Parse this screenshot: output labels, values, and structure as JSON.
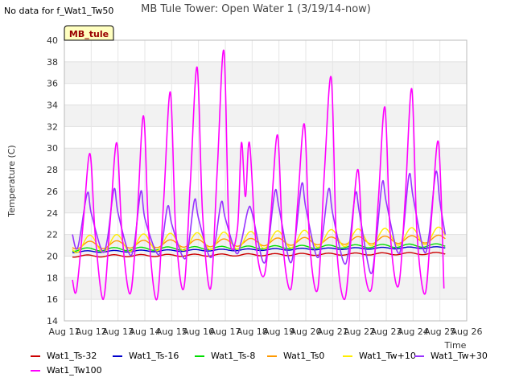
{
  "header": {
    "no_data_note": "No data for f_Wat1_Tw50"
  },
  "chart_data": {
    "type": "line",
    "title": "MB Tule Tower: Open Water 1 (3/19/14-now)",
    "badge": "MB_tule",
    "xlabel": "Time",
    "ylabel": "Temperature (C)",
    "ylim": [
      14,
      40
    ],
    "yticks": [
      14,
      16,
      18,
      20,
      22,
      24,
      26,
      28,
      30,
      32,
      34,
      36,
      38,
      40
    ],
    "xlim": [
      11,
      26
    ],
    "xticks": [
      11,
      12,
      13,
      14,
      15,
      16,
      17,
      18,
      19,
      20,
      21,
      22,
      23,
      24,
      25,
      26
    ],
    "xtick_labels": [
      "Aug 11",
      "Aug 12",
      "Aug 13",
      "Aug 14",
      "Aug 15",
      "Aug 16",
      "Aug 17",
      "Aug 18",
      "Aug 19",
      "Aug 20",
      "Aug 21",
      "Aug 22",
      "Aug 23",
      "Aug 24",
      "Aug 25",
      "Aug 26"
    ],
    "grid": true,
    "series": [
      {
        "name": "Wat1_Ts-32",
        "color": "#cc0000",
        "mean": 20.0,
        "amp": 0.1,
        "drift": 0.25,
        "phase": 0.6,
        "x": [
          11.3,
          25.2
        ]
      },
      {
        "name": "Wat1_Ts-16",
        "color": "#0000cc",
        "mean": 20.4,
        "amp": 0.08,
        "drift": 0.4,
        "phase": 0.6,
        "x": [
          11.3,
          25.2
        ]
      },
      {
        "name": "Wat1_Ts-8",
        "color": "#00dd00",
        "mean": 20.6,
        "amp": 0.15,
        "drift": 0.4,
        "phase": 0.6,
        "x": [
          11.3,
          25.2
        ]
      },
      {
        "name": "Wat1_Ts0",
        "color": "#ff9900",
        "mean": 21.0,
        "amp": 0.35,
        "drift": 0.6,
        "phase": 0.7,
        "x": [
          11.3,
          25.2
        ]
      },
      {
        "name": "Wat1_Tw+10",
        "color": "#ffee00",
        "mean": 21.1,
        "amp": 0.8,
        "drift": 0.8,
        "phase": 0.7,
        "x": [
          11.3,
          25.2
        ]
      },
      {
        "name": "Wat1_Tw+30",
        "color": "#9933ff",
        "x": [
          11.3,
          11.5,
          11.85,
          12.0,
          12.4,
          12.6,
          12.85,
          13.0,
          13.4,
          13.6,
          13.85,
          14.0,
          14.4,
          14.6,
          14.85,
          15.0,
          15.4,
          15.6,
          15.85,
          16.0,
          16.4,
          16.6,
          16.85,
          17.0,
          17.4,
          17.6,
          17.85,
          18.0,
          18.4,
          18.6,
          18.85,
          19.0,
          19.4,
          19.6,
          19.85,
          20.0,
          20.4,
          20.6,
          20.85,
          21.0,
          21.4,
          21.6,
          21.85,
          22.0,
          22.4,
          22.6,
          22.85,
          23.0,
          23.4,
          23.6,
          23.85,
          24.0,
          24.4,
          24.6,
          24.85,
          25.0,
          25.2
        ],
        "y": [
          22,
          20.8,
          25.8,
          24,
          20.5,
          21.5,
          26.2,
          24,
          20.3,
          21,
          26,
          23.5,
          20.5,
          20.6,
          24.6,
          23,
          20,
          20.5,
          25.2,
          23.5,
          20,
          21,
          25,
          23.5,
          20.3,
          21.4,
          24.3,
          24,
          19.5,
          21,
          26,
          24.5,
          19.5,
          21.5,
          26.7,
          24.5,
          20,
          21.5,
          26.2,
          24,
          19.5,
          20.5,
          25.8,
          24,
          18.5,
          20.8,
          26.8,
          25,
          20.5,
          21.5,
          27.5,
          25.5,
          20.5,
          22,
          27.8,
          25,
          22
        ]
      },
      {
        "name": "Wat1_Tw100",
        "color": "#ff00ff",
        "x": [
          11.3,
          11.45,
          11.7,
          11.95,
          12.15,
          12.45,
          12.7,
          12.95,
          13.15,
          13.45,
          13.7,
          13.95,
          14.15,
          14.45,
          14.7,
          14.95,
          15.15,
          15.45,
          15.7,
          15.95,
          16.15,
          16.45,
          16.7,
          16.95,
          17.15,
          17.45,
          17.6,
          17.75,
          17.9,
          18.15,
          18.45,
          18.7,
          18.95,
          19.15,
          19.45,
          19.7,
          19.95,
          20.15,
          20.45,
          20.7,
          20.95,
          21.15,
          21.45,
          21.7,
          21.95,
          22.15,
          22.45,
          22.7,
          22.95,
          23.15,
          23.45,
          23.7,
          23.95,
          24.15,
          24.45,
          24.7,
          24.95,
          25.15
        ],
        "y": [
          17.8,
          16.8,
          23,
          29.5,
          22,
          16,
          23,
          30.5,
          22,
          16.5,
          23,
          33,
          22,
          16,
          25,
          35.2,
          22.5,
          17,
          27,
          37.5,
          24,
          17,
          28,
          39,
          22,
          22.5,
          30.5,
          25.5,
          30.5,
          21,
          18.2,
          24,
          31.2,
          21,
          17,
          25,
          32.2,
          21,
          17,
          28,
          36.5,
          21,
          16,
          22,
          28,
          19.5,
          17,
          25,
          33.8,
          22,
          17.2,
          25,
          35.5,
          22,
          16.5,
          24,
          30.5,
          17
        ]
      }
    ]
  }
}
